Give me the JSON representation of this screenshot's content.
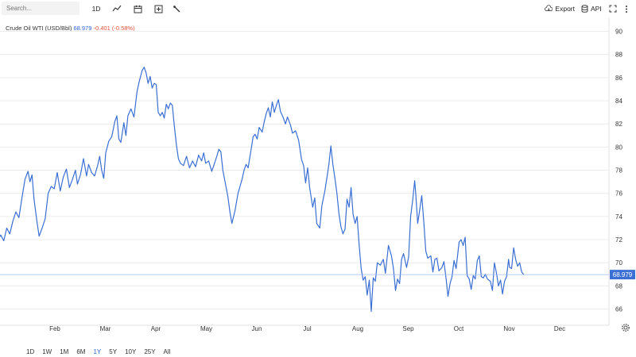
{
  "toolbar": {
    "search_placeholder": "Search...",
    "interval_label": "1D",
    "export_label": "Export",
    "api_label": "API",
    "icons": [
      "line-chart-icon",
      "calendar-icon",
      "add-indicator-icon",
      "draw-tools-icon",
      "cloud-download-icon",
      "database-icon",
      "fullscreen-icon",
      "more-vertical-icon"
    ]
  },
  "legend": {
    "name": "Crude Oil WTI (USD/Bbl)",
    "value": "68.979",
    "change": "-0.401 (-0.58%)"
  },
  "ranges": {
    "items": [
      "1D",
      "1W",
      "1M",
      "6M",
      "1Y",
      "5Y",
      "10Y",
      "25Y",
      "All"
    ],
    "active": "1Y"
  },
  "colors": {
    "line": "#3b6fd4",
    "price_tag": "#3b6fd4",
    "grid": "#ececec",
    "change_negative": "#e0513b"
  },
  "chart_data": {
    "type": "line",
    "title": "Crude Oil WTI (USD/Bbl)",
    "xlabel": "",
    "ylabel": "",
    "ylim": [
      64.6,
      91.2
    ],
    "yticks": [
      66,
      68,
      70,
      72,
      74,
      76,
      78,
      80,
      82,
      84,
      86,
      88,
      90
    ],
    "x_categories": [
      "Feb",
      "Mar",
      "Apr",
      "May",
      "Jun",
      "Jul",
      "Aug",
      "Sep",
      "Oct",
      "Nov",
      "Dec"
    ],
    "grid": true,
    "last_price": 68.979,
    "series": [
      {
        "name": "Crude Oil WTI (USD/Bbl)",
        "month_points": [
          [
            0.0,
            73.5
          ],
          [
            0.05,
            75.5
          ],
          [
            0.12,
            73.5
          ],
          [
            0.18,
            71.8
          ],
          [
            0.24,
            71.2
          ],
          [
            0.3,
            70.3
          ],
          [
            0.36,
            72.8
          ],
          [
            0.4,
            72.2
          ],
          [
            0.45,
            73.8
          ],
          [
            0.5,
            71.5
          ],
          [
            0.55,
            70.7
          ],
          [
            0.6,
            71.9
          ],
          [
            0.66,
            72.4
          ],
          [
            0.72,
            71.9
          ],
          [
            0.78,
            73.0
          ],
          [
            0.84,
            72.5
          ],
          [
            0.9,
            73.6
          ],
          [
            0.96,
            74.4
          ],
          [
            1.02,
            73.9
          ],
          [
            1.08,
            75.6
          ],
          [
            1.14,
            77.2
          ],
          [
            1.2,
            77.9
          ],
          [
            1.24,
            77.0
          ],
          [
            1.28,
            77.6
          ],
          [
            1.32,
            75.5
          ],
          [
            1.38,
            73.5
          ],
          [
            1.42,
            72.3
          ],
          [
            1.48,
            73.0
          ],
          [
            1.54,
            73.8
          ],
          [
            1.6,
            76.0
          ],
          [
            1.66,
            76.6
          ],
          [
            1.72,
            76.4
          ],
          [
            1.78,
            77.8
          ],
          [
            1.84,
            76.2
          ],
          [
            1.9,
            77.4
          ],
          [
            1.96,
            78.1
          ],
          [
            2.02,
            76.5
          ],
          [
            2.08,
            77.2
          ],
          [
            2.14,
            78.0
          ],
          [
            2.18,
            76.8
          ],
          [
            2.24,
            77.6
          ],
          [
            2.3,
            79.0
          ],
          [
            2.36,
            77.5
          ],
          [
            2.4,
            78.5
          ],
          [
            2.46,
            77.8
          ],
          [
            2.52,
            77.5
          ],
          [
            2.58,
            78.4
          ],
          [
            2.62,
            79.2
          ],
          [
            2.66,
            78.0
          ],
          [
            2.7,
            77.3
          ],
          [
            2.74,
            79.5
          ],
          [
            2.8,
            80.5
          ],
          [
            2.86,
            80.9
          ],
          [
            2.92,
            82.2
          ],
          [
            2.96,
            82.7
          ],
          [
            3.0,
            80.7
          ],
          [
            3.04,
            80.4
          ],
          [
            3.1,
            82.1
          ],
          [
            3.14,
            81.0
          ],
          [
            3.18,
            82.7
          ],
          [
            3.24,
            83.3
          ],
          [
            3.3,
            82.6
          ],
          [
            3.36,
            84.8
          ],
          [
            3.4,
            85.6
          ],
          [
            3.46,
            86.6
          ],
          [
            3.5,
            86.9
          ],
          [
            3.54,
            86.4
          ],
          [
            3.58,
            85.5
          ],
          [
            3.62,
            86.1
          ],
          [
            3.66,
            85.1
          ],
          [
            3.7,
            85.5
          ],
          [
            3.74,
            85.4
          ],
          [
            3.78,
            83.0
          ],
          [
            3.82,
            82.7
          ],
          [
            3.86,
            83.0
          ],
          [
            3.9,
            82.5
          ],
          [
            3.94,
            83.7
          ],
          [
            3.98,
            83.3
          ],
          [
            4.02,
            83.8
          ],
          [
            4.06,
            83.6
          ],
          [
            4.1,
            81.8
          ],
          [
            4.14,
            80.2
          ],
          [
            4.18,
            79.0
          ],
          [
            4.22,
            78.6
          ],
          [
            4.28,
            78.4
          ],
          [
            4.34,
            79.2
          ],
          [
            4.4,
            78.2
          ],
          [
            4.46,
            78.8
          ],
          [
            4.52,
            78.3
          ],
          [
            4.58,
            79.3
          ],
          [
            4.64,
            78.8
          ],
          [
            4.68,
            79.5
          ],
          [
            4.72,
            78.6
          ],
          [
            4.78,
            78.8
          ],
          [
            4.84,
            77.9
          ],
          [
            4.88,
            78.4
          ],
          [
            4.94,
            79.2
          ],
          [
            4.98,
            79.8
          ],
          [
            5.02,
            79.6
          ],
          [
            5.06,
            78.0
          ],
          [
            5.1,
            77.1
          ],
          [
            5.16,
            75.7
          ],
          [
            5.2,
            74.4
          ],
          [
            5.24,
            73.4
          ],
          [
            5.3,
            74.5
          ],
          [
            5.36,
            76.0
          ],
          [
            5.4,
            76.6
          ],
          [
            5.44,
            77.2
          ],
          [
            5.48,
            78.0
          ],
          [
            5.52,
            78.5
          ],
          [
            5.56,
            78.2
          ],
          [
            5.62,
            79.8
          ],
          [
            5.66,
            80.9
          ],
          [
            5.7,
            81.1
          ],
          [
            5.74,
            80.7
          ],
          [
            5.78,
            81.7
          ],
          [
            5.84,
            81.3
          ],
          [
            5.88,
            82.2
          ],
          [
            5.92,
            82.9
          ],
          [
            5.96,
            83.4
          ],
          [
            6.0,
            82.6
          ],
          [
            6.04,
            83.9
          ],
          [
            6.08,
            83.0
          ],
          [
            6.12,
            83.6
          ],
          [
            6.16,
            84.1
          ],
          [
            6.2,
            83.1
          ],
          [
            6.26,
            82.5
          ],
          [
            6.3,
            82.0
          ],
          [
            6.34,
            82.6
          ],
          [
            6.4,
            81.9
          ],
          [
            6.44,
            81.2
          ],
          [
            6.5,
            81.4
          ],
          [
            6.56,
            80.6
          ],
          [
            6.62,
            78.9
          ],
          [
            6.66,
            78.4
          ],
          [
            6.7,
            76.9
          ],
          [
            6.74,
            78.2
          ],
          [
            6.78,
            76.5
          ],
          [
            6.84,
            74.8
          ],
          [
            6.88,
            75.6
          ],
          [
            6.92,
            73.4
          ],
          [
            6.98,
            73.0
          ],
          [
            7.02,
            74.9
          ],
          [
            7.08,
            76.2
          ],
          [
            7.12,
            77.3
          ],
          [
            7.16,
            78.5
          ],
          [
            7.2,
            80.1
          ],
          [
            7.24,
            78.5
          ],
          [
            7.28,
            77.3
          ],
          [
            7.32,
            76.0
          ],
          [
            7.36,
            74.2
          ],
          [
            7.4,
            73.1
          ],
          [
            7.44,
            72.5
          ],
          [
            7.48,
            72.9
          ],
          [
            7.52,
            75.5
          ],
          [
            7.56,
            74.8
          ],
          [
            7.6,
            76.5
          ],
          [
            7.64,
            74.2
          ],
          [
            7.68,
            73.4
          ],
          [
            7.72,
            74.0
          ],
          [
            7.76,
            71.5
          ],
          [
            7.8,
            69.5
          ],
          [
            7.84,
            68.5
          ],
          [
            7.88,
            68.8
          ],
          [
            7.92,
            67.2
          ],
          [
            7.96,
            68.5
          ],
          [
            8.0,
            65.8
          ],
          [
            8.04,
            68.7
          ],
          [
            8.08,
            68.4
          ],
          [
            8.12,
            70.0
          ],
          [
            8.18,
            69.8
          ],
          [
            8.24,
            70.3
          ],
          [
            8.28,
            69.1
          ],
          [
            8.34,
            71.5
          ],
          [
            8.4,
            70.6
          ],
          [
            8.44,
            69.5
          ],
          [
            8.48,
            67.6
          ],
          [
            8.52,
            68.6
          ],
          [
            8.56,
            68.2
          ],
          [
            8.6,
            70.3
          ],
          [
            8.64,
            70.8
          ],
          [
            8.7,
            69.6
          ],
          [
            8.74,
            70.5
          ],
          [
            8.78,
            74.0
          ],
          [
            8.82,
            75.4
          ],
          [
            8.86,
            77.1
          ],
          [
            8.88,
            76.0
          ],
          [
            8.92,
            73.4
          ],
          [
            8.96,
            74.6
          ],
          [
            9.0,
            75.8
          ],
          [
            9.04,
            73.6
          ],
          [
            9.08,
            71.0
          ],
          [
            9.12,
            70.4
          ],
          [
            9.18,
            70.6
          ],
          [
            9.22,
            69.2
          ],
          [
            9.26,
            70.3
          ],
          [
            9.3,
            70.4
          ],
          [
            9.34,
            69.3
          ],
          [
            9.4,
            69.6
          ],
          [
            9.44,
            70.1
          ],
          [
            9.48,
            68.7
          ],
          [
            9.52,
            67.1
          ],
          [
            9.56,
            68.2
          ],
          [
            9.6,
            68.8
          ],
          [
            9.64,
            70.2
          ],
          [
            9.68,
            69.5
          ],
          [
            9.74,
            71.8
          ],
          [
            9.78,
            72.0
          ],
          [
            9.82,
            71.5
          ],
          [
            9.86,
            72.2
          ],
          [
            9.9,
            68.9
          ],
          [
            9.94,
            68.6
          ],
          [
            9.98,
            67.7
          ],
          [
            10.02,
            68.9
          ],
          [
            10.06,
            68.6
          ],
          [
            10.1,
            70.2
          ],
          [
            10.14,
            70.6
          ],
          [
            10.18,
            68.8
          ],
          [
            10.22,
            68.7
          ],
          [
            10.26,
            69.0
          ],
          [
            10.3,
            68.6
          ],
          [
            10.36,
            68.4
          ],
          [
            10.4,
            67.6
          ],
          [
            10.44,
            70.0
          ],
          [
            10.48,
            69.1
          ],
          [
            10.52,
            68.0
          ],
          [
            10.56,
            68.5
          ],
          [
            10.6,
            67.3
          ],
          [
            10.64,
            68.4
          ],
          [
            10.68,
            68.8
          ],
          [
            10.72,
            70.3
          ],
          [
            10.74,
            69.6
          ],
          [
            10.78,
            69.5
          ],
          [
            10.82,
            71.3
          ],
          [
            10.86,
            70.3
          ],
          [
            10.9,
            69.7
          ],
          [
            10.94,
            70.0
          ],
          [
            10.98,
            69.2
          ],
          [
            11.02,
            68.98
          ]
        ]
      }
    ]
  }
}
